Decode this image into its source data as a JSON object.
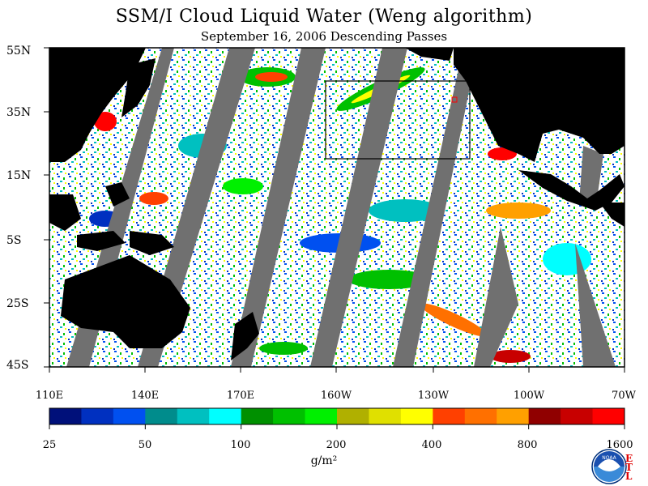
{
  "title": "SSM/I Cloud Liquid Water (Weng algorithm)",
  "subtitle": "September 16, 2006  Descending Passes",
  "lat_labels": [
    "55N",
    "35N",
    "15N",
    "5S",
    "25S",
    "45S"
  ],
  "lon_labels": [
    "110E",
    "140E",
    "170E",
    "160W",
    "130W",
    "100W",
    "70W"
  ],
  "colorbar": {
    "colors": [
      "#00107a",
      "#0030c0",
      "#0050f0",
      "#008c8c",
      "#00c0c0",
      "#00ffff",
      "#009000",
      "#00c000",
      "#00f000",
      "#b0b000",
      "#e0e000",
      "#ffff00",
      "#ff4000",
      "#ff7000",
      "#ffa000",
      "#900000",
      "#c80000",
      "#ff0000"
    ],
    "labels": [
      "25",
      "50",
      "100",
      "200",
      "400",
      "800",
      "1600"
    ]
  },
  "units": "g/m²",
  "logo": {
    "name": "noaa-logo",
    "text": "NOAA"
  },
  "etl_mark": "ETL"
}
